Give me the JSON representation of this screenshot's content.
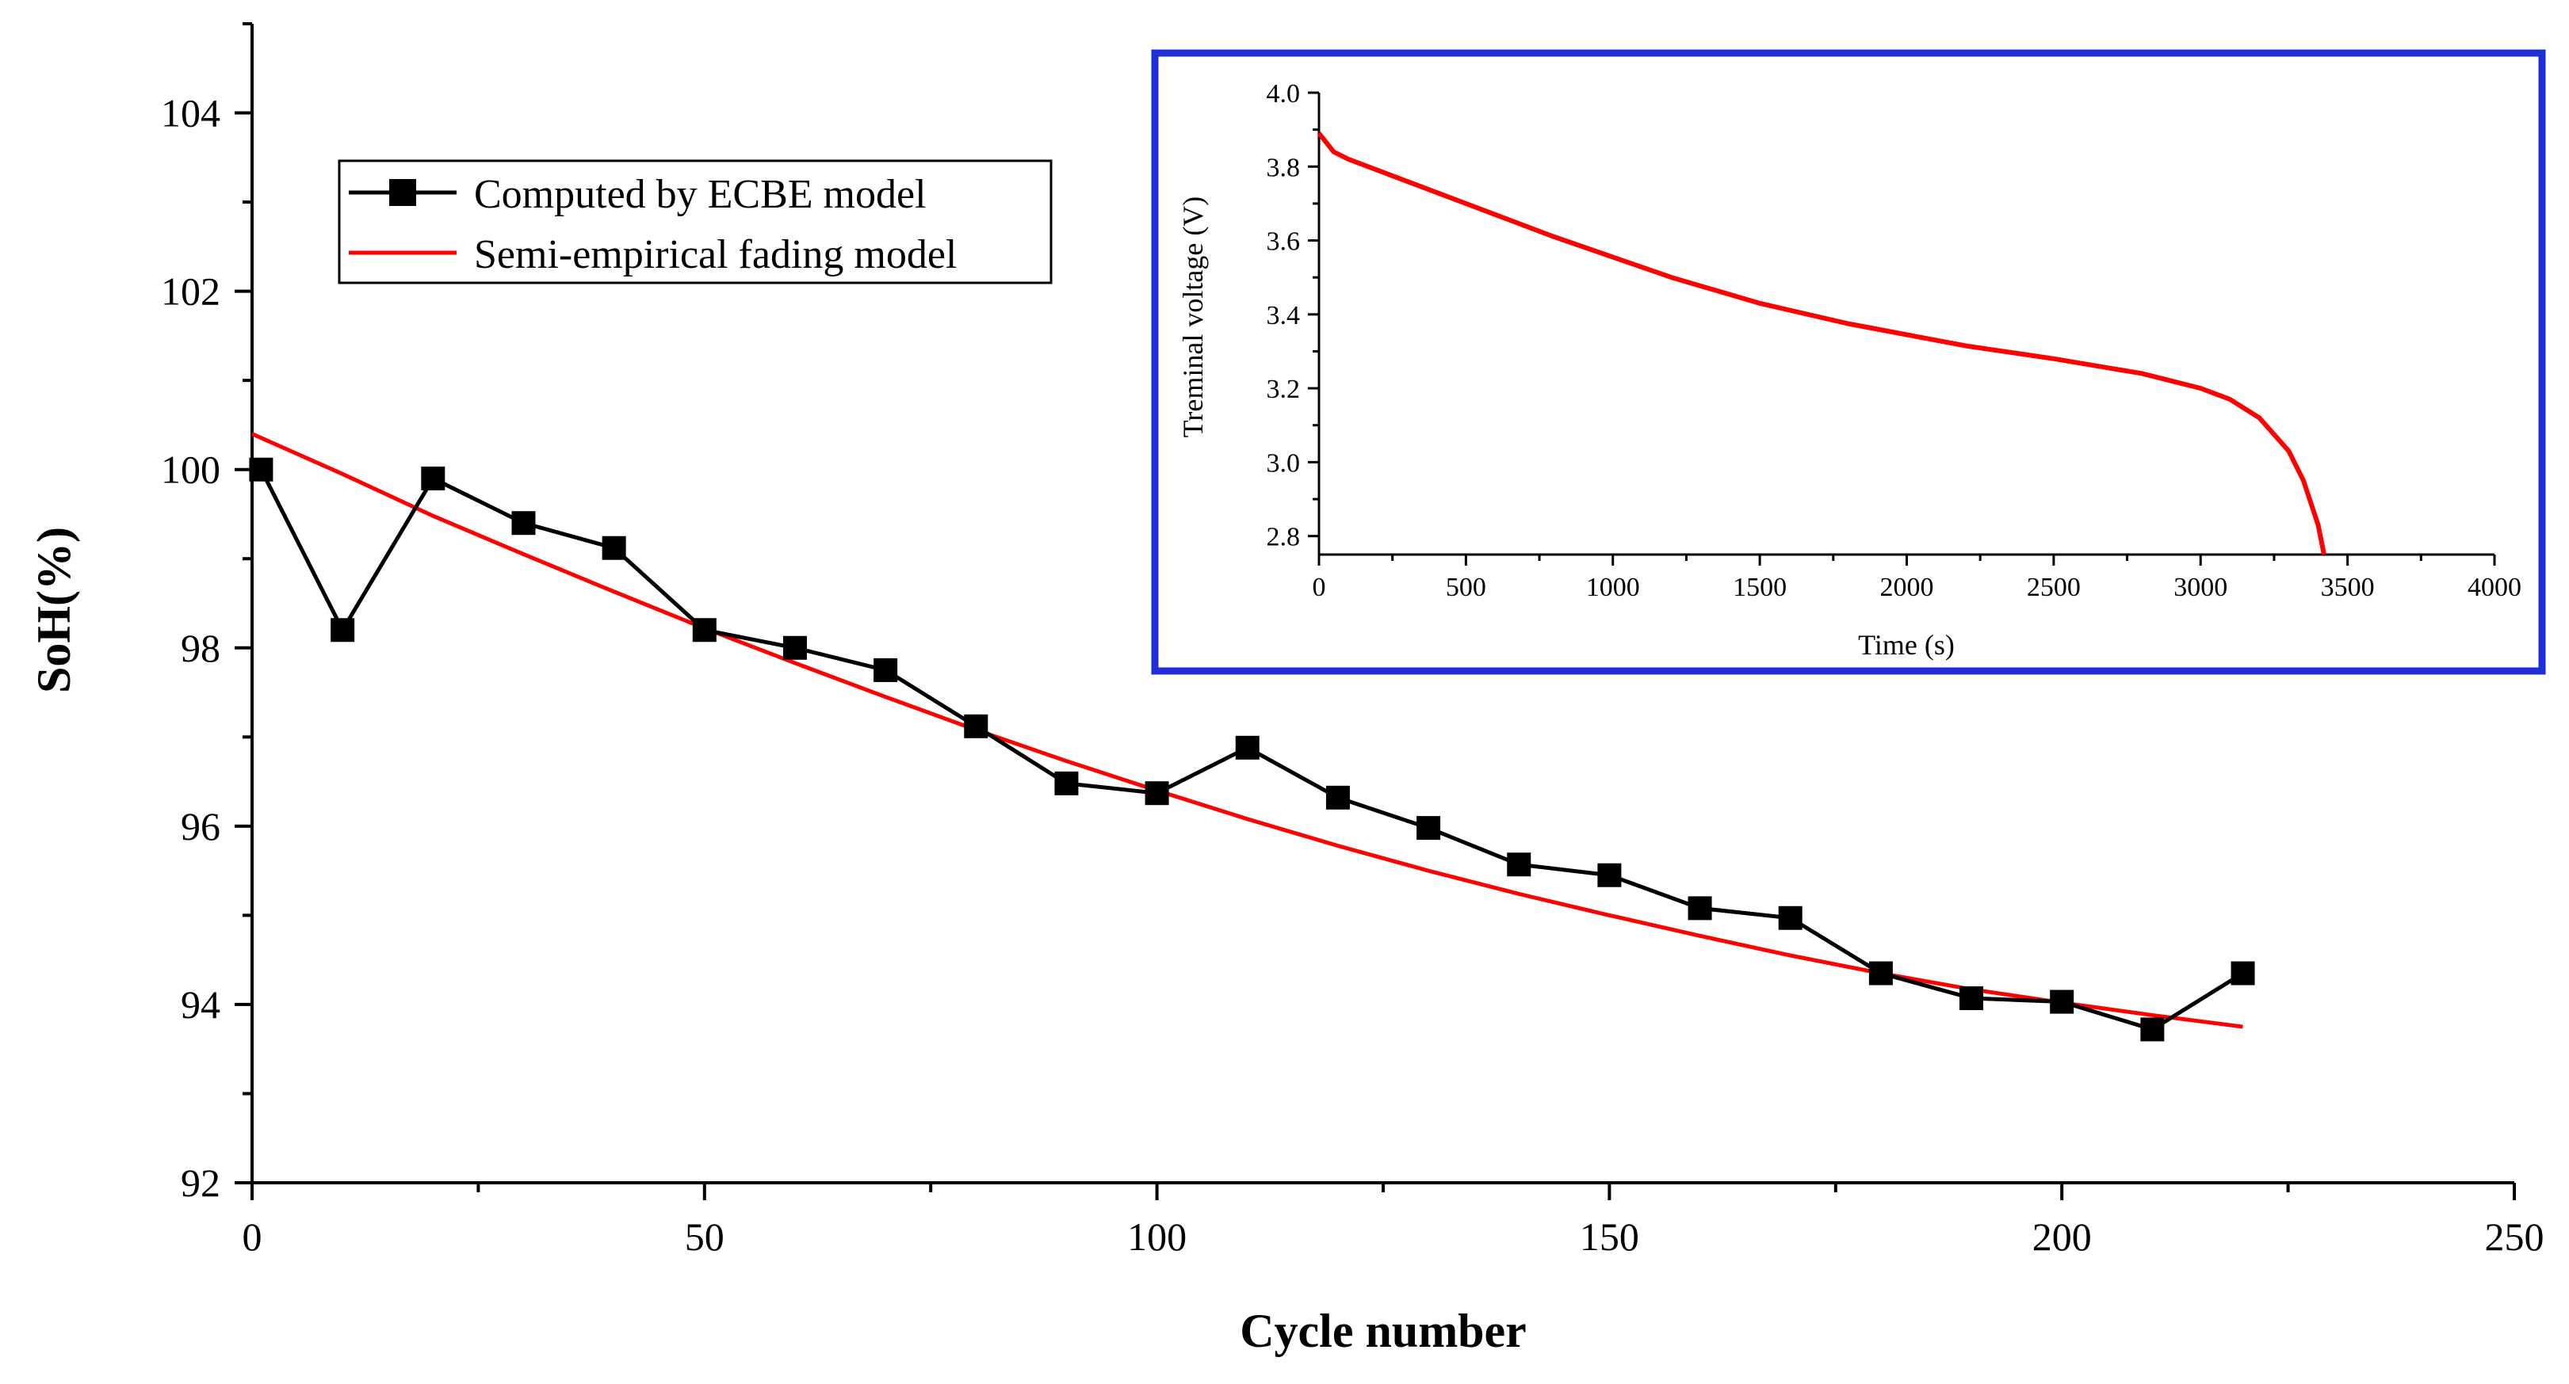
{
  "colors": {
    "ecbe_series": "#000000",
    "fading_series": "#ff0000",
    "inset_border": "#1f2fd8",
    "inset_curve": "#ff0000",
    "axis": "#000000"
  },
  "chart_data": [
    {
      "type": "line",
      "title": "",
      "xlabel": "Cycle number",
      "ylabel": "SoH(%)",
      "xlim": [
        0,
        250
      ],
      "ylim": [
        92,
        105
      ],
      "x_ticks": [
        0,
        50,
        100,
        150,
        200,
        250
      ],
      "x_tick_labels": [
        "0",
        "50",
        "100",
        "150",
        "200",
        "250"
      ],
      "y_ticks": [
        92,
        94,
        96,
        98,
        100,
        102,
        104
      ],
      "y_tick_labels": [
        "92",
        "94",
        "96",
        "98",
        "100",
        "102",
        "104"
      ],
      "legend_position": "top-left",
      "series": [
        {
          "name": "Computed by ECBE model",
          "marker": "square",
          "x": [
            1,
            10,
            20,
            30,
            40,
            50,
            60,
            70,
            80,
            90,
            100,
            110,
            120,
            130,
            140,
            150,
            160,
            170,
            180,
            190,
            200,
            210,
            220
          ],
          "values": [
            100.0,
            98.2,
            99.9,
            99.4,
            99.12,
            98.2,
            98.0,
            97.75,
            97.12,
            96.48,
            96.37,
            96.88,
            96.32,
            95.98,
            95.57,
            95.45,
            95.08,
            94.97,
            94.35,
            94.07,
            94.03,
            93.72,
            94.35
          ]
        },
        {
          "name": "Semi-empirical fading model",
          "marker": "none",
          "x": [
            0,
            10,
            20,
            30,
            40,
            50,
            60,
            70,
            80,
            90,
            100,
            110,
            120,
            130,
            140,
            150,
            160,
            170,
            180,
            190,
            200,
            210,
            220
          ],
          "values": [
            100.4,
            99.95,
            99.48,
            99.05,
            98.63,
            98.22,
            97.83,
            97.45,
            97.08,
            96.73,
            96.4,
            96.08,
            95.78,
            95.5,
            95.24,
            95.0,
            94.77,
            94.55,
            94.35,
            94.17,
            94.02,
            93.88,
            93.75
          ]
        }
      ]
    },
    {
      "type": "line",
      "title": "",
      "xlabel": "Time (s)",
      "ylabel": "Treminal voltage (V)",
      "xlim": [
        0,
        4000
      ],
      "ylim": [
        2.75,
        4.0
      ],
      "x_ticks": [
        0,
        500,
        1000,
        1500,
        2000,
        2500,
        3000,
        3500,
        4000
      ],
      "x_tick_labels": [
        "0",
        "500",
        "1000",
        "1500",
        "2000",
        "2500",
        "3000",
        "3500",
        "4000"
      ],
      "y_ticks": [
        2.8,
        3.0,
        3.2,
        3.4,
        3.6,
        3.8,
        4.0
      ],
      "y_tick_labels": [
        "2.8",
        "3.0",
        "3.2",
        "3.4",
        "3.6",
        "3.8",
        "4.0"
      ],
      "series": [
        {
          "name": "Terminal voltage",
          "x": [
            0,
            50,
            100,
            200,
            400,
            600,
            800,
            1000,
            1200,
            1500,
            1800,
            2000,
            2200,
            2500,
            2800,
            3000,
            3100,
            3200,
            3300,
            3350,
            3400,
            3420
          ],
          "values": [
            3.89,
            3.84,
            3.82,
            3.79,
            3.73,
            3.67,
            3.61,
            3.555,
            3.5,
            3.43,
            3.375,
            3.345,
            3.315,
            3.28,
            3.24,
            3.2,
            3.17,
            3.12,
            3.03,
            2.95,
            2.83,
            2.75
          ]
        }
      ]
    }
  ]
}
